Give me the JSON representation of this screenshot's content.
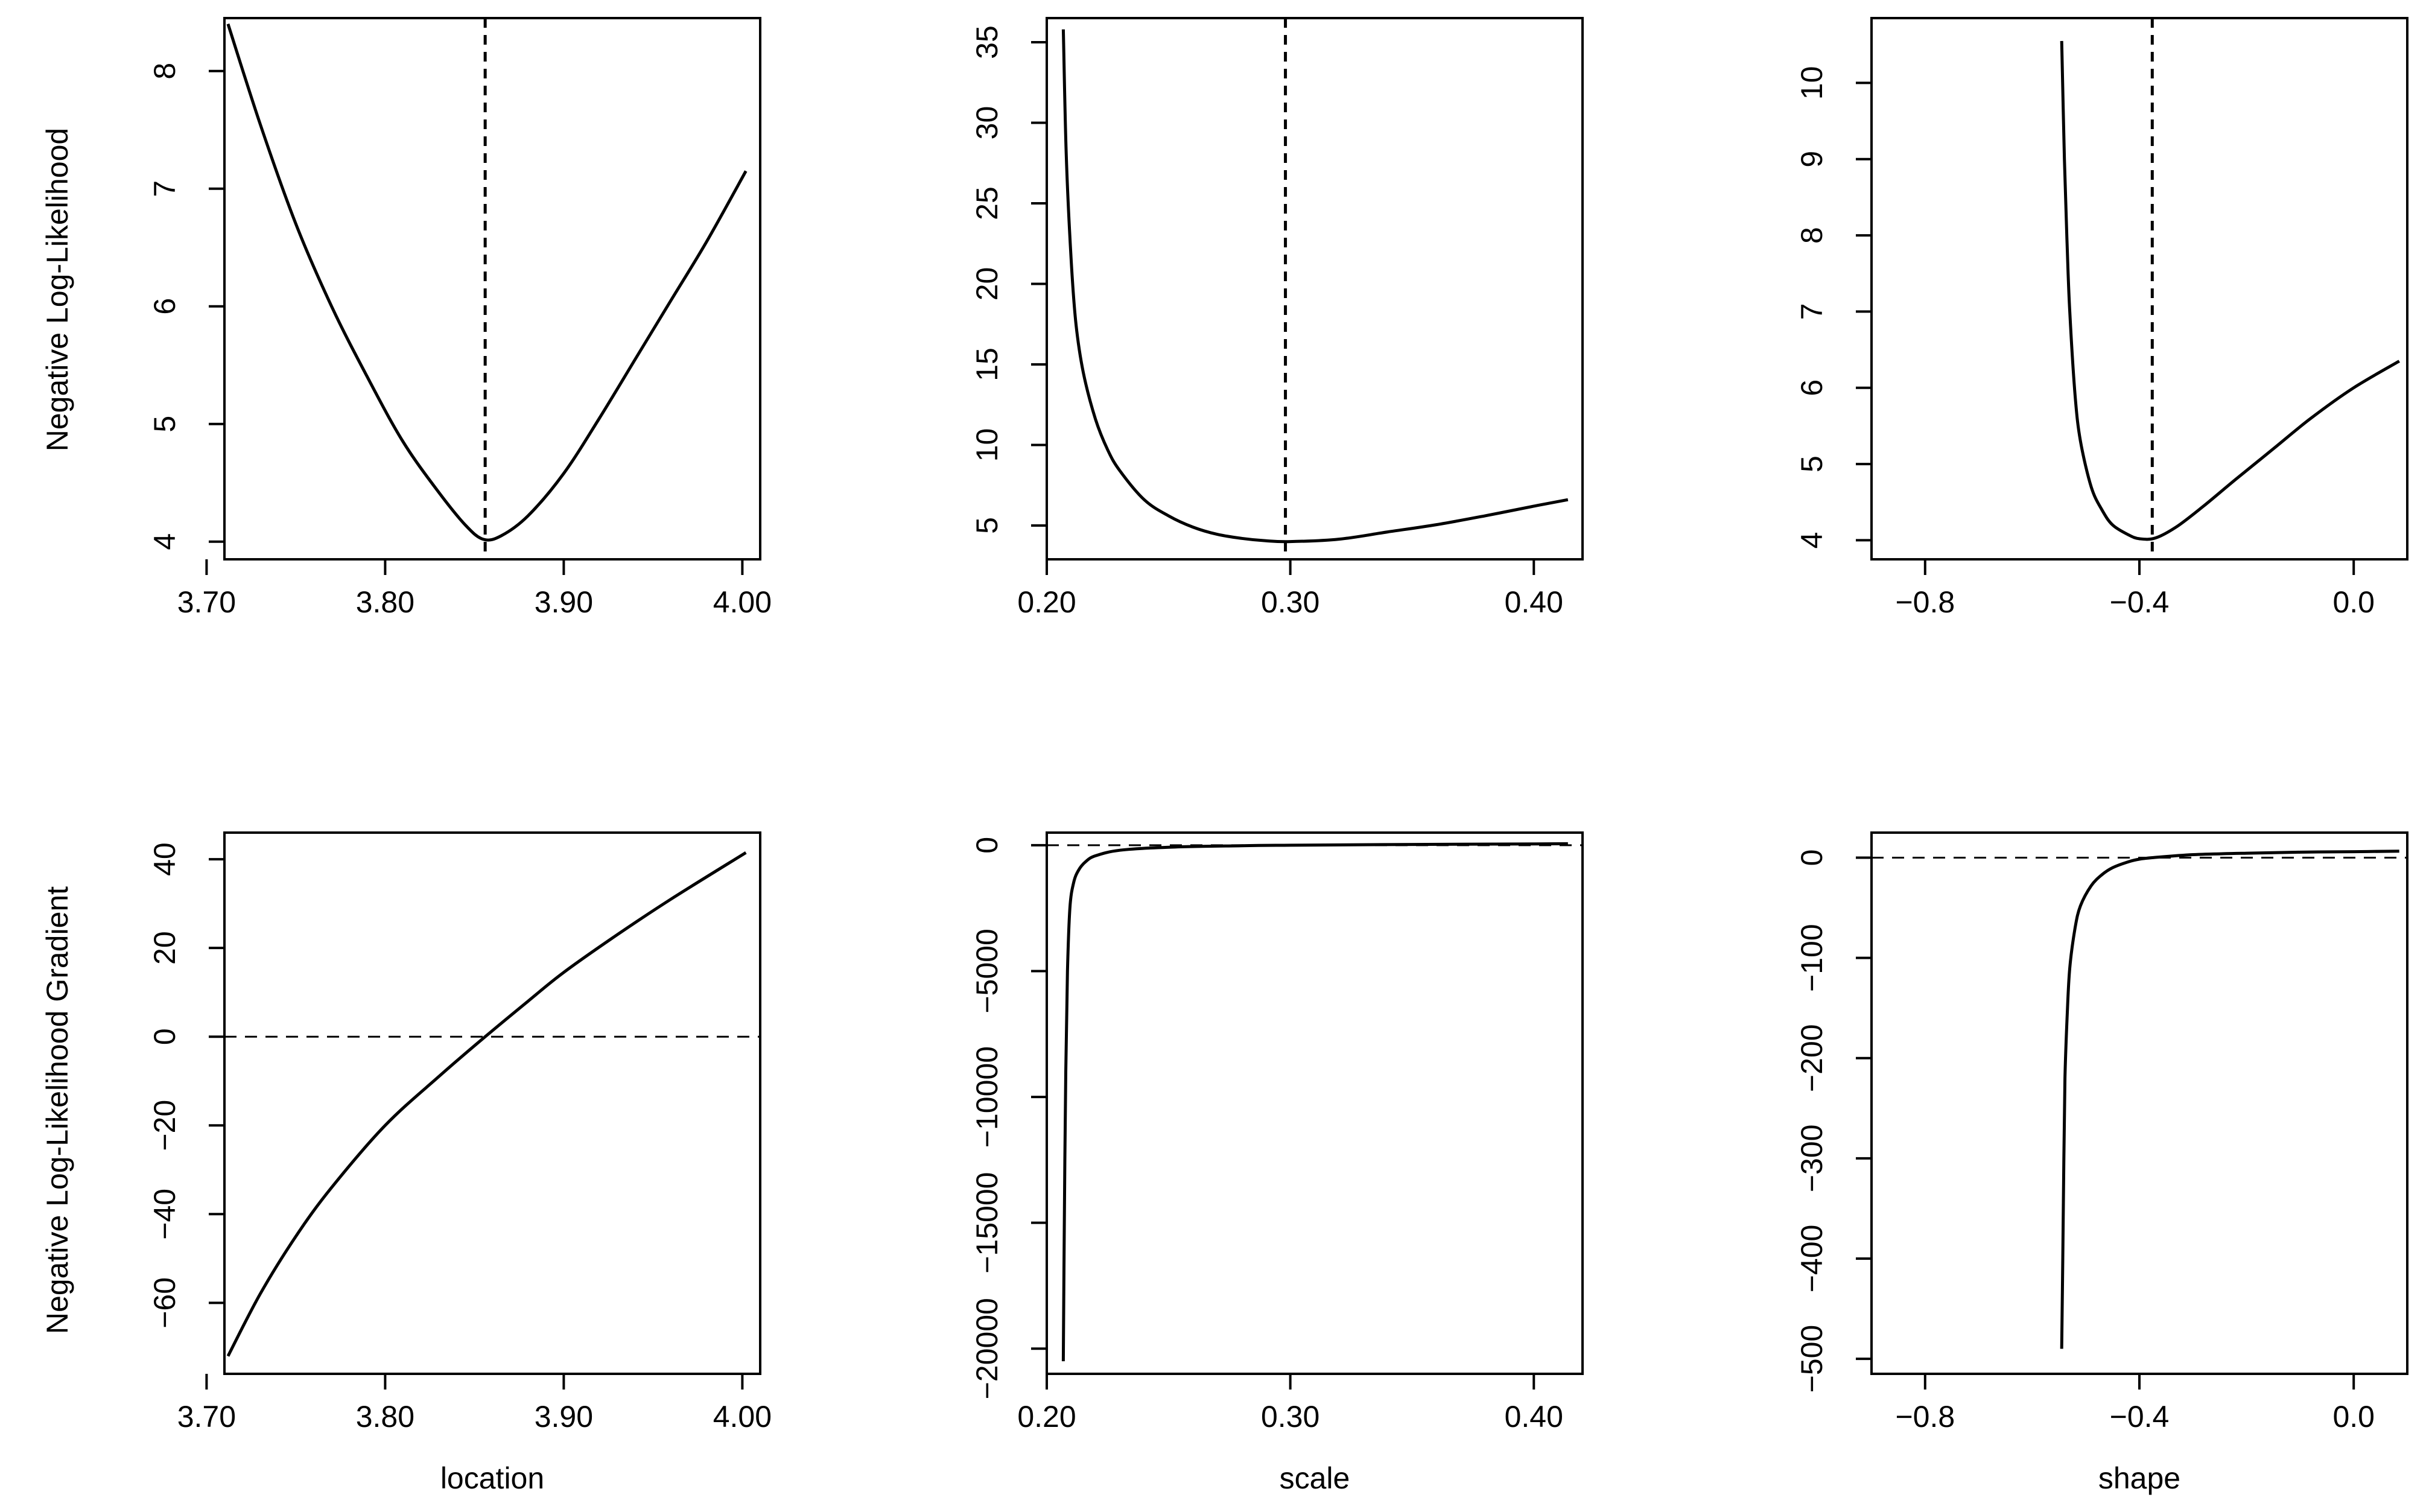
{
  "figure": {
    "y_label_top": "Negative Log-Likelihood",
    "y_label_bottom": "Negative Log-Likelihood Gradient"
  },
  "chart_data": [
    {
      "id": "nll-location",
      "type": "line",
      "title": "",
      "xlabel": "",
      "ylabel": "Negative Log-Likelihood",
      "xlim": [
        3.71,
        4.01
      ],
      "ylim": [
        3.85,
        8.45
      ],
      "xticks": [
        3.7,
        3.8,
        3.9,
        4.0
      ],
      "xtick_labels": [
        "3.70",
        "3.80",
        "3.90",
        "4.00"
      ],
      "yticks": [
        4,
        5,
        6,
        7,
        8
      ],
      "ytick_labels": [
        "4",
        "5",
        "6",
        "7",
        "8"
      ],
      "x": [
        3.712,
        3.73,
        3.75,
        3.77,
        3.79,
        3.81,
        3.83,
        3.845,
        3.855,
        3.865,
        3.88,
        3.9,
        3.92,
        3.94,
        3.96,
        3.98,
        4.002
      ],
      "series": [
        {
          "values": [
            8.4,
            7.55,
            6.7,
            6.0,
            5.4,
            4.85,
            4.42,
            4.14,
            4.02,
            4.05,
            4.22,
            4.58,
            5.05,
            5.55,
            6.05,
            6.55,
            7.15
          ],
          "line_style": "solid"
        }
      ],
      "vline": {
        "x": 3.856,
        "line_style": "dashed"
      },
      "grid": false
    },
    {
      "id": "nll-scale",
      "type": "line",
      "title": "",
      "xlabel": "",
      "ylabel": "",
      "xlim": [
        0.2,
        0.42
      ],
      "ylim": [
        2.9,
        36.5
      ],
      "xticks": [
        0.2,
        0.3,
        0.4
      ],
      "xtick_labels": [
        "0.20",
        "0.30",
        "0.40"
      ],
      "yticks": [
        5,
        10,
        15,
        20,
        25,
        30,
        35
      ],
      "ytick_labels": [
        "5",
        "10",
        "15",
        "20",
        "25",
        "30",
        "35"
      ],
      "x": [
        0.2068,
        0.208,
        0.21,
        0.212,
        0.215,
        0.22,
        0.225,
        0.23,
        0.24,
        0.25,
        0.26,
        0.27,
        0.28,
        0.29,
        0.3,
        0.32,
        0.34,
        0.36,
        0.38,
        0.4,
        0.414
      ],
      "series": [
        {
          "values": [
            35.8,
            28.0,
            21.5,
            17.5,
            14.5,
            11.6,
            9.7,
            8.4,
            6.6,
            5.6,
            4.9,
            4.45,
            4.2,
            4.05,
            4.0,
            4.15,
            4.6,
            5.05,
            5.6,
            6.2,
            6.6
          ],
          "line_style": "solid"
        }
      ],
      "vline": {
        "x": 0.298,
        "line_style": "dashed"
      },
      "grid": false
    },
    {
      "id": "nll-shape",
      "type": "line",
      "title": "",
      "xlabel": "",
      "ylabel": "",
      "xlim": [
        -0.9,
        0.1
      ],
      "ylim": [
        3.75,
        10.85
      ],
      "xticks": [
        -0.8,
        -0.4,
        0.0
      ],
      "xtick_labels": [
        "−0.8",
        "−0.4",
        "0.0"
      ],
      "yticks": [
        4,
        5,
        6,
        7,
        8,
        9,
        10
      ],
      "ytick_labels": [
        "4",
        "5",
        "6",
        "7",
        "8",
        "9",
        "10"
      ],
      "x": [
        -0.545,
        -0.54,
        -0.535,
        -0.53,
        -0.52,
        -0.51,
        -0.49,
        -0.47,
        -0.45,
        -0.42,
        -0.4,
        -0.37,
        -0.33,
        -0.28,
        -0.22,
        -0.15,
        -0.08,
        0.0,
        0.085
      ],
      "series": [
        {
          "values": [
            10.55,
            9.0,
            7.9,
            7.0,
            5.9,
            5.3,
            4.7,
            4.4,
            4.2,
            4.07,
            4.02,
            4.03,
            4.18,
            4.45,
            4.8,
            5.2,
            5.6,
            6.0,
            6.35
          ],
          "line_style": "solid"
        }
      ],
      "vline": {
        "x": -0.376,
        "line_style": "dashed"
      },
      "grid": false
    },
    {
      "id": "grad-location",
      "type": "line",
      "title": "",
      "xlabel": "location",
      "ylabel": "Negative Log-Likelihood Gradient",
      "xlim": [
        3.71,
        4.01
      ],
      "ylim": [
        -76,
        46
      ],
      "xticks": [
        3.7,
        3.8,
        3.9,
        4.0
      ],
      "xtick_labels": [
        "3.70",
        "3.80",
        "3.90",
        "4.00"
      ],
      "yticks": [
        -60,
        -40,
        -20,
        0,
        20,
        40
      ],
      "ytick_labels": [
        "−60",
        "−40",
        "−20",
        "0",
        "20",
        "40"
      ],
      "x": [
        3.712,
        3.73,
        3.75,
        3.77,
        3.8,
        3.83,
        3.856,
        3.88,
        3.9,
        3.93,
        3.96,
        4.002
      ],
      "series": [
        {
          "values": [
            -72,
            -58,
            -45,
            -34,
            -20,
            -9,
            0,
            8,
            14.5,
            23,
            31,
            41.5
          ],
          "line_style": "solid"
        }
      ],
      "hline": {
        "y": 0,
        "line_style": "dashed"
      },
      "grid": false
    },
    {
      "id": "grad-scale",
      "type": "line",
      "title": "",
      "xlabel": "scale",
      "ylabel": "",
      "xlim": [
        0.2,
        0.42
      ],
      "ylim": [
        -21000,
        500
      ],
      "xticks": [
        0.2,
        0.3,
        0.4
      ],
      "xtick_labels": [
        "0.20",
        "0.30",
        "0.40"
      ],
      "yticks": [
        -20000,
        -15000,
        -10000,
        -5000,
        0
      ],
      "ytick_labels": [
        "−20000",
        "−15000",
        "−10000",
        "−5000",
        "0"
      ],
      "x": [
        0.2068,
        0.2072,
        0.2078,
        0.2085,
        0.2095,
        0.211,
        0.213,
        0.216,
        0.22,
        0.23,
        0.25,
        0.28,
        0.3,
        0.35,
        0.4,
        0.414
      ],
      "series": [
        {
          "values": [
            -20500,
            -15000,
            -9000,
            -5000,
            -2500,
            -1500,
            -1000,
            -650,
            -420,
            -200,
            -80,
            -20,
            0,
            30,
            50,
            60
          ],
          "line_style": "solid"
        }
      ],
      "hline": {
        "y": 0,
        "line_style": "dashed"
      },
      "grid": false
    },
    {
      "id": "grad-shape",
      "type": "line",
      "title": "",
      "xlabel": "shape",
      "ylabel": "",
      "xlim": [
        -0.9,
        0.1
      ],
      "ylim": [
        -515,
        25
      ],
      "xticks": [
        -0.8,
        -0.4,
        0.0
      ],
      "xtick_labels": [
        "−0.8",
        "−0.4",
        "0.0"
      ],
      "yticks": [
        -500,
        -400,
        -300,
        -200,
        -100,
        0
      ],
      "ytick_labels": [
        "−500",
        "−400",
        "−300",
        "−200",
        "−100",
        "0"
      ],
      "x": [
        -0.545,
        -0.543,
        -0.541,
        -0.539,
        -0.535,
        -0.53,
        -0.52,
        -0.51,
        -0.49,
        -0.47,
        -0.45,
        -0.42,
        -0.4,
        -0.376,
        -0.3,
        -0.2,
        -0.1,
        0.0,
        0.085
      ],
      "series": [
        {
          "values": [
            -490,
            -400,
            -300,
            -220,
            -160,
            -110,
            -70,
            -48,
            -28,
            -17,
            -10,
            -4,
            -1.5,
            0,
            3,
            4.5,
            5.5,
            6,
            6.5
          ],
          "line_style": "solid"
        }
      ],
      "hline": {
        "y": 0,
        "line_style": "dashed"
      },
      "grid": false
    }
  ]
}
